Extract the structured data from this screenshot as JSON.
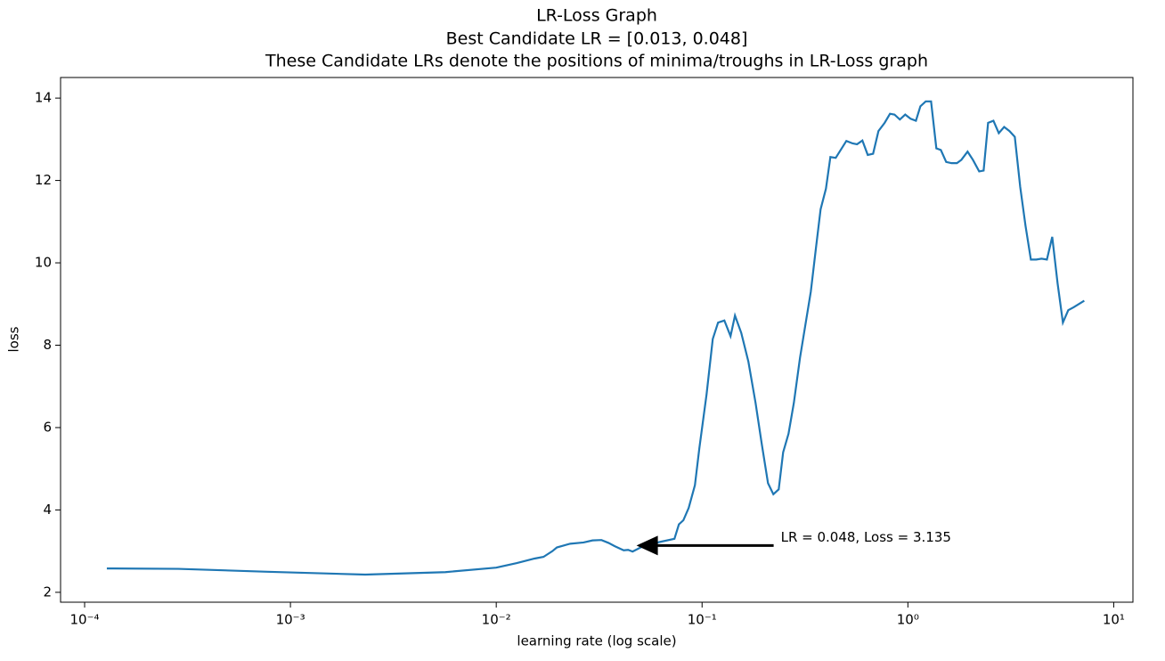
{
  "chart_data": {
    "type": "line",
    "title": [
      "LR-Loss Graph",
      "Best Candidate LR = [0.013, 0.048]",
      "These Candidate LRs denote the positions of minima/troughs in LR-Loss graph"
    ],
    "x_label": "learning rate (log scale)",
    "y_label": "loss",
    "x_scale": "log",
    "color": "#1f77b4",
    "xlim": [
      7.64e-05,
      12.4
    ],
    "ylim": [
      1.76,
      14.5
    ],
    "xticks": [
      {
        "value": 0.0001,
        "label": "10⁻⁴"
      },
      {
        "value": 0.001,
        "label": "10⁻³"
      },
      {
        "value": 0.01,
        "label": "10⁻²"
      },
      {
        "value": 0.1,
        "label": "10⁻¹"
      },
      {
        "value": 1,
        "label": "10⁰"
      },
      {
        "value": 10,
        "label": "10¹"
      }
    ],
    "yticks": [
      2,
      4,
      6,
      8,
      10,
      12,
      14
    ],
    "x": [
      0.0001282,
      0.000285,
      0.000771,
      0.00231,
      0.00566,
      0.01,
      0.01259,
      0.01535,
      0.01696,
      0.01874,
      0.0197,
      0.02287,
      0.02656,
      0.02935,
      0.03243,
      0.03511,
      0.03765,
      0.0416,
      0.04373,
      0.04596,
      0.05079,
      0.05612,
      0.06201,
      0.07341,
      0.07717,
      0.08111,
      0.0861,
      0.0923,
      0.097,
      0.1051,
      0.1127,
      0.1196,
      0.1283,
      0.1375,
      0.1445,
      0.155,
      0.1679,
      0.1819,
      0.195,
      0.2091,
      0.222,
      0.2357,
      0.2477,
      0.263,
      0.2792,
      0.2992,
      0.3375,
      0.3583,
      0.3766,
      0.3998,
      0.4202,
      0.4461,
      0.5024,
      0.5387,
      0.5662,
      0.6011,
      0.6382,
      0.6776,
      0.7194,
      0.7711,
      0.8187,
      0.8608,
      0.9139,
      0.9705,
      1.03,
      1.094,
      1.15,
      1.221,
      1.296,
      1.375,
      1.446,
      1.535,
      1.63,
      1.73,
      1.819,
      1.95,
      2.07,
      2.22,
      2.333,
      2.453,
      2.604,
      2.765,
      2.935,
      3.115,
      3.307,
      3.512,
      3.728,
      3.958,
      4.202,
      4.461,
      4.736,
      5.027,
      5.338,
      5.665,
      6.015,
      6.386,
      7.194
    ],
    "values": [
      2.58,
      2.57,
      2.5,
      2.43,
      2.49,
      2.6,
      2.71,
      2.82,
      2.86,
      3.0,
      3.09,
      3.18,
      3.21,
      3.26,
      3.27,
      3.2,
      3.12,
      3.02,
      3.03,
      2.99,
      3.1,
      3.16,
      3.22,
      3.3,
      3.65,
      3.75,
      4.05,
      4.6,
      5.5,
      6.8,
      8.15,
      8.55,
      8.6,
      8.22,
      8.72,
      8.3,
      7.6,
      6.6,
      5.6,
      4.65,
      4.38,
      4.5,
      5.4,
      5.85,
      6.6,
      7.7,
      9.3,
      10.4,
      11.3,
      11.8,
      12.57,
      12.55,
      12.96,
      12.9,
      12.88,
      12.97,
      12.62,
      12.65,
      13.2,
      13.4,
      13.62,
      13.6,
      13.48,
      13.6,
      13.5,
      13.45,
      13.8,
      13.92,
      13.92,
      12.78,
      12.74,
      12.45,
      12.42,
      12.42,
      12.5,
      12.7,
      12.5,
      12.22,
      12.24,
      13.4,
      13.45,
      13.15,
      13.3,
      13.2,
      13.06,
      11.85,
      10.9,
      10.08,
      10.08,
      10.1,
      10.08,
      10.63,
      9.5,
      8.55,
      8.85,
      8.92,
      9.08
    ],
    "annotation": {
      "text": "LR = 0.048, Loss = 3.135",
      "x": 0.048,
      "y": 3.135
    }
  }
}
